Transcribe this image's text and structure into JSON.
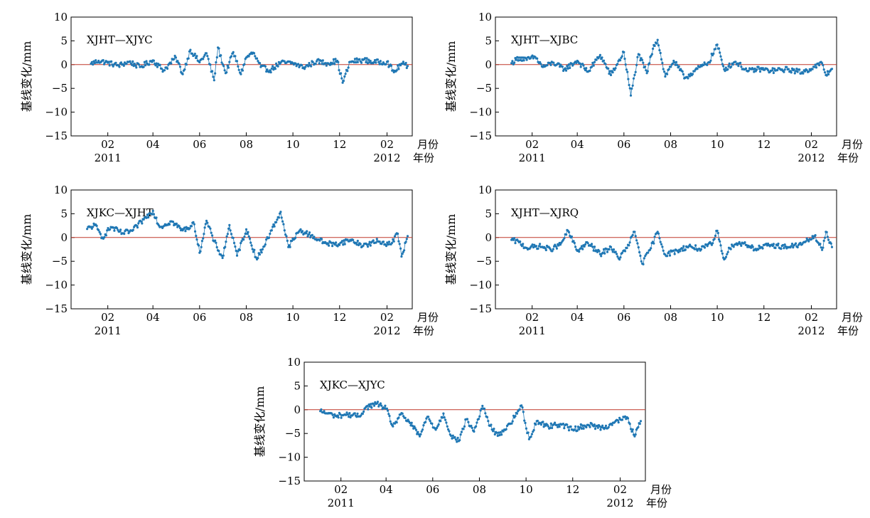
{
  "colors": {
    "series": "#1f77b4",
    "zero_line": "#c0392b",
    "axis": "#000000"
  },
  "chart_data": [
    {
      "type": "line",
      "label": "XJHT—XJYC",
      "ylabel": "基线变化/mm",
      "ylim": [
        -15,
        10
      ],
      "yticks": [
        10,
        5,
        0,
        -5,
        -10,
        -15
      ],
      "xlim": [
        "2010-12-15",
        "2012-03-05"
      ],
      "xticks": [
        {
          "date": "2011-02-01",
          "label": "02"
        },
        {
          "date": "2011-04-01",
          "label": "04"
        },
        {
          "date": "2011-06-01",
          "label": "06"
        },
        {
          "date": "2011-08-01",
          "label": "08"
        },
        {
          "date": "2011-10-01",
          "label": "10"
        },
        {
          "date": "2011-12-01",
          "label": "12"
        },
        {
          "date": "2012-02-01",
          "label": "02"
        }
      ],
      "year_labels": [
        {
          "date": "2011-02-01",
          "label": "2011"
        },
        {
          "date": "2012-02-01",
          "label": "2012"
        }
      ],
      "month_unit": "月份",
      "year_unit": "年份",
      "reference_line": 0,
      "series": [
        {
          "values": [
            [
              "2011-01-10",
              0.2
            ],
            [
              "2011-01-20",
              0.8
            ],
            [
              "2011-02-01",
              0.4
            ],
            [
              "2011-02-15",
              -0.2
            ],
            [
              "2011-03-01",
              0.6
            ],
            [
              "2011-03-15",
              -0.5
            ],
            [
              "2011-04-01",
              0.9
            ],
            [
              "2011-04-15",
              -1.2
            ],
            [
              "2011-05-01",
              1.5
            ],
            [
              "2011-05-10",
              -2.0
            ],
            [
              "2011-05-20",
              3.1
            ],
            [
              "2011-06-01",
              0.5
            ],
            [
              "2011-06-10",
              2.4
            ],
            [
              "2011-06-20",
              -3.3
            ],
            [
              "2011-06-25",
              3.6
            ],
            [
              "2011-07-05",
              -1.8
            ],
            [
              "2011-07-15",
              2.6
            ],
            [
              "2011-07-25",
              -2.0
            ],
            [
              "2011-08-01",
              1.5
            ],
            [
              "2011-08-10",
              2.5
            ],
            [
              "2011-08-20",
              -0.5
            ],
            [
              "2011-09-01",
              -1.2
            ],
            [
              "2011-09-15",
              0.4
            ],
            [
              "2011-10-01",
              0.3
            ],
            [
              "2011-10-15",
              -0.6
            ],
            [
              "2011-11-01",
              0.7
            ],
            [
              "2011-11-15",
              0.3
            ],
            [
              "2011-11-28",
              0.8
            ],
            [
              "2011-12-05",
              -3.8
            ],
            [
              "2011-12-15",
              0.6
            ],
            [
              "2012-01-01",
              1.0
            ],
            [
              "2012-01-15",
              0.5
            ],
            [
              "2012-02-01",
              0.6
            ],
            [
              "2012-02-10",
              -1.6
            ],
            [
              "2012-02-20",
              0.2
            ],
            [
              "2012-02-28",
              -0.3
            ]
          ]
        }
      ]
    },
    {
      "type": "line",
      "label": "XJHT—XJBC",
      "ylabel": "基线变化/mm",
      "ylim": [
        -15,
        10
      ],
      "yticks": [
        10,
        5,
        0,
        -5,
        -10,
        -15
      ],
      "xlim": [
        "2010-12-15",
        "2012-03-05"
      ],
      "xticks": [
        {
          "date": "2011-02-01",
          "label": "02"
        },
        {
          "date": "2011-04-01",
          "label": "04"
        },
        {
          "date": "2011-06-01",
          "label": "06"
        },
        {
          "date": "2011-08-01",
          "label": "08"
        },
        {
          "date": "2011-10-01",
          "label": "10"
        },
        {
          "date": "2011-12-01",
          "label": "12"
        },
        {
          "date": "2012-02-01",
          "label": "02"
        }
      ],
      "year_labels": [
        {
          "date": "2011-02-01",
          "label": "2011"
        },
        {
          "date": "2012-02-01",
          "label": "2012"
        }
      ],
      "month_unit": "月份",
      "year_unit": "年份",
      "reference_line": 0,
      "series": [
        {
          "values": [
            [
              "2011-01-05",
              0.3
            ],
            [
              "2011-01-15",
              1.5
            ],
            [
              "2011-01-25",
              1.0
            ],
            [
              "2011-02-05",
              1.6
            ],
            [
              "2011-02-15",
              -0.5
            ],
            [
              "2011-03-01",
              0.4
            ],
            [
              "2011-03-15",
              -1.0
            ],
            [
              "2011-04-01",
              0.8
            ],
            [
              "2011-04-15",
              -1.5
            ],
            [
              "2011-05-01",
              2.0
            ],
            [
              "2011-05-15",
              -2.2
            ],
            [
              "2011-06-01",
              2.6
            ],
            [
              "2011-06-10",
              -6.5
            ],
            [
              "2011-06-20",
              2.2
            ],
            [
              "2011-07-01",
              -1.8
            ],
            [
              "2011-07-10",
              4.1
            ],
            [
              "2011-07-15",
              5.2
            ],
            [
              "2011-07-25",
              -2.5
            ],
            [
              "2011-08-05",
              0.8
            ],
            [
              "2011-08-20",
              -2.8
            ],
            [
              "2011-09-05",
              -0.9
            ],
            [
              "2011-09-20",
              0.5
            ],
            [
              "2011-10-01",
              4.2
            ],
            [
              "2011-10-10",
              -1.0
            ],
            [
              "2011-10-25",
              0.6
            ],
            [
              "2011-11-10",
              -1.4
            ],
            [
              "2011-11-25",
              -0.9
            ],
            [
              "2011-12-10",
              -1.3
            ],
            [
              "2012-01-01",
              -1.0
            ],
            [
              "2012-01-20",
              -1.6
            ],
            [
              "2012-02-05",
              -0.5
            ],
            [
              "2012-02-15",
              0.3
            ],
            [
              "2012-02-20",
              -2.2
            ],
            [
              "2012-02-28",
              -0.9
            ]
          ]
        }
      ]
    },
    {
      "type": "line",
      "label": "XJKC—XJHT",
      "ylabel": "基线变化/mm",
      "ylim": [
        -15,
        10
      ],
      "yticks": [
        10,
        5,
        0,
        -5,
        -10,
        -15
      ],
      "xlim": [
        "2010-12-15",
        "2012-03-05"
      ],
      "xticks": [
        {
          "date": "2011-02-01",
          "label": "02"
        },
        {
          "date": "2011-04-01",
          "label": "04"
        },
        {
          "date": "2011-06-01",
          "label": "06"
        },
        {
          "date": "2011-08-01",
          "label": "08"
        },
        {
          "date": "2011-10-01",
          "label": "10"
        },
        {
          "date": "2011-12-01",
          "label": "12"
        },
        {
          "date": "2012-02-01",
          "label": "02"
        }
      ],
      "year_labels": [
        {
          "date": "2011-02-01",
          "label": "2011"
        },
        {
          "date": "2012-02-01",
          "label": "2012"
        }
      ],
      "month_unit": "月份",
      "year_unit": "年份",
      "reference_line": 0,
      "series": [
        {
          "values": [
            [
              "2011-01-05",
              1.8
            ],
            [
              "2011-01-15",
              2.6
            ],
            [
              "2011-01-25",
              0.0
            ],
            [
              "2011-02-05",
              2.2
            ],
            [
              "2011-02-20",
              0.9
            ],
            [
              "2011-03-05",
              1.4
            ],
            [
              "2011-03-20",
              3.8
            ],
            [
              "2011-04-01",
              5.6
            ],
            [
              "2011-04-10",
              2.2
            ],
            [
              "2011-04-25",
              3.4
            ],
            [
              "2011-05-10",
              1.5
            ],
            [
              "2011-05-25",
              2.8
            ],
            [
              "2011-06-01",
              -3.2
            ],
            [
              "2011-06-10",
              3.5
            ],
            [
              "2011-06-20",
              -0.8
            ],
            [
              "2011-07-01",
              -4.3
            ],
            [
              "2011-07-10",
              2.6
            ],
            [
              "2011-07-20",
              -3.8
            ],
            [
              "2011-08-01",
              1.7
            ],
            [
              "2011-08-15",
              -4.6
            ],
            [
              "2011-09-01",
              0.8
            ],
            [
              "2011-09-15",
              5.4
            ],
            [
              "2011-09-25",
              -2.0
            ],
            [
              "2011-10-10",
              1.5
            ],
            [
              "2011-10-25",
              0.4
            ],
            [
              "2011-11-10",
              -1.0
            ],
            [
              "2011-11-25",
              -1.5
            ],
            [
              "2011-12-15",
              -0.5
            ],
            [
              "2012-01-01",
              -1.7
            ],
            [
              "2012-01-20",
              -0.8
            ],
            [
              "2012-02-05",
              -1.4
            ],
            [
              "2012-02-15",
              0.8
            ],
            [
              "2012-02-20",
              -4.0
            ],
            [
              "2012-02-28",
              0.3
            ]
          ]
        }
      ]
    },
    {
      "type": "line",
      "label": "XJHT—XJRQ",
      "ylabel": "基线变化/mm",
      "ylim": [
        -15,
        10
      ],
      "yticks": [
        10,
        5,
        0,
        -5,
        -10,
        -15
      ],
      "xlim": [
        "2010-12-15",
        "2012-03-05"
      ],
      "xticks": [
        {
          "date": "2011-02-01",
          "label": "02"
        },
        {
          "date": "2011-04-01",
          "label": "04"
        },
        {
          "date": "2011-06-01",
          "label": "06"
        },
        {
          "date": "2011-08-01",
          "label": "08"
        },
        {
          "date": "2011-10-01",
          "label": "10"
        },
        {
          "date": "2011-12-01",
          "label": "12"
        },
        {
          "date": "2012-02-01",
          "label": "02"
        }
      ],
      "year_labels": [
        {
          "date": "2011-02-01",
          "label": "2011"
        },
        {
          "date": "2012-02-01",
          "label": "2012"
        }
      ],
      "month_unit": "月份",
      "year_unit": "年份",
      "reference_line": 0,
      "series": [
        {
          "values": [
            [
              "2011-01-05",
              -0.5
            ],
            [
              "2011-01-15",
              -1.0
            ],
            [
              "2011-01-25",
              -2.2
            ],
            [
              "2011-02-10",
              -1.8
            ],
            [
              "2011-02-25",
              -2.5
            ],
            [
              "2011-03-10",
              -1.5
            ],
            [
              "2011-03-20",
              1.4
            ],
            [
              "2011-04-01",
              -2.8
            ],
            [
              "2011-04-15",
              -1.2
            ],
            [
              "2011-05-01",
              -3.5
            ],
            [
              "2011-05-15",
              -2.0
            ],
            [
              "2011-05-25",
              -4.4
            ],
            [
              "2011-06-05",
              -2.2
            ],
            [
              "2011-06-15",
              1.2
            ],
            [
              "2011-06-25",
              -5.5
            ],
            [
              "2011-07-05",
              -2.6
            ],
            [
              "2011-07-15",
              1.2
            ],
            [
              "2011-07-25",
              -3.6
            ],
            [
              "2011-08-10",
              -2.8
            ],
            [
              "2011-08-25",
              -1.8
            ],
            [
              "2011-09-10",
              -2.5
            ],
            [
              "2011-09-25",
              -1.2
            ],
            [
              "2011-10-01",
              1.4
            ],
            [
              "2011-10-10",
              -4.6
            ],
            [
              "2011-10-20",
              -1.5
            ],
            [
              "2011-11-05",
              -1.2
            ],
            [
              "2011-11-20",
              -2.4
            ],
            [
              "2011-12-10",
              -1.6
            ],
            [
              "2012-01-01",
              -2.0
            ],
            [
              "2012-01-20",
              -1.4
            ],
            [
              "2012-02-05",
              0.3
            ],
            [
              "2012-02-15",
              -2.6
            ],
            [
              "2012-02-20",
              1.2
            ],
            [
              "2012-02-28",
              -2.0
            ]
          ]
        }
      ]
    },
    {
      "type": "line",
      "label": "XJKC—XJYC",
      "ylabel": "基线变化/mm",
      "ylim": [
        -15,
        10
      ],
      "yticks": [
        10,
        5,
        0,
        -5,
        -10,
        -15
      ],
      "xlim": [
        "2010-12-15",
        "2012-03-05"
      ],
      "xticks": [
        {
          "date": "2011-02-01",
          "label": "02"
        },
        {
          "date": "2011-04-01",
          "label": "04"
        },
        {
          "date": "2011-06-01",
          "label": "06"
        },
        {
          "date": "2011-08-01",
          "label": "08"
        },
        {
          "date": "2011-10-01",
          "label": "10"
        },
        {
          "date": "2011-12-01",
          "label": "12"
        },
        {
          "date": "2012-02-01",
          "label": "02"
        }
      ],
      "year_labels": [
        {
          "date": "2011-02-01",
          "label": "2011"
        },
        {
          "date": "2012-02-01",
          "label": "2012"
        }
      ],
      "month_unit": "月份",
      "year_unit": "年份",
      "reference_line": 0,
      "series": [
        {
          "values": [
            [
              "2011-01-05",
              -0.3
            ],
            [
              "2011-01-15",
              -0.8
            ],
            [
              "2011-01-25",
              -1.3
            ],
            [
              "2011-02-10",
              -1.0
            ],
            [
              "2011-02-25",
              -1.4
            ],
            [
              "2011-03-05",
              0.4
            ],
            [
              "2011-03-20",
              1.3
            ],
            [
              "2011-04-01",
              0.2
            ],
            [
              "2011-04-10",
              -3.5
            ],
            [
              "2011-04-20",
              -1.0
            ],
            [
              "2011-05-01",
              -2.5
            ],
            [
              "2011-05-15",
              -5.6
            ],
            [
              "2011-05-25",
              -1.5
            ],
            [
              "2011-06-05",
              -4.2
            ],
            [
              "2011-06-15",
              -0.8
            ],
            [
              "2011-06-25",
              -5.5
            ],
            [
              "2011-07-05",
              -6.6
            ],
            [
              "2011-07-15",
              -2.0
            ],
            [
              "2011-07-25",
              -4.6
            ],
            [
              "2011-08-05",
              0.8
            ],
            [
              "2011-08-15",
              -3.4
            ],
            [
              "2011-08-25",
              -5.5
            ],
            [
              "2011-09-10",
              -3.0
            ],
            [
              "2011-09-25",
              0.9
            ],
            [
              "2011-10-05",
              -6.2
            ],
            [
              "2011-10-15",
              -2.4
            ],
            [
              "2011-10-30",
              -3.5
            ],
            [
              "2011-11-15",
              -3.0
            ],
            [
              "2011-12-01",
              -4.2
            ],
            [
              "2011-12-20",
              -3.2
            ],
            [
              "2012-01-10",
              -3.8
            ],
            [
              "2012-01-25",
              -2.6
            ],
            [
              "2012-02-10",
              -1.6
            ],
            [
              "2012-02-20",
              -5.6
            ],
            [
              "2012-02-28",
              -2.4
            ]
          ]
        }
      ]
    }
  ]
}
